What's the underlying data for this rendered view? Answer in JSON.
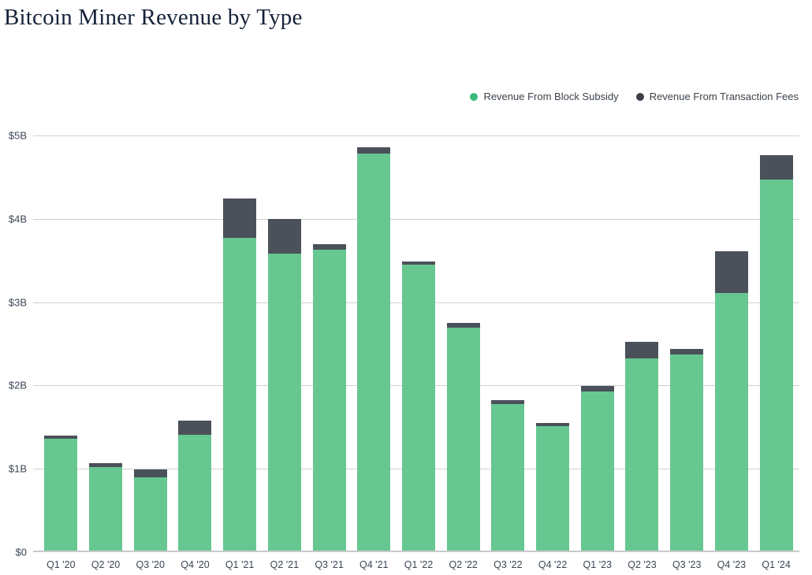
{
  "title": "Bitcoin Miner Revenue by Type",
  "colors": {
    "subsidy_bar": "#67C791",
    "fees_bar": "#4B515A",
    "legend_subsidy_dot": "#3ABA7B",
    "legend_fees_dot": "#3A4047",
    "gridline": "#D1D1D1",
    "baseline": "#C8CACC",
    "axis_text": "#3C4653",
    "title_text": "#15223A"
  },
  "legend": [
    {
      "name": "legend-item-block-subsidy",
      "label": "Revenue From Block Subsidy",
      "dot_color": "#3ABA7B"
    },
    {
      "name": "legend-item-transaction-fees",
      "label": "Revenue From Transaction Fees",
      "dot_color": "#3A4047"
    }
  ],
  "chart_data": {
    "type": "bar",
    "stacked": true,
    "title": "Bitcoin Miner Revenue by Type",
    "xlabel": "",
    "ylabel": "",
    "ylim": [
      0,
      5
    ],
    "grid": "horizontal",
    "legend_position": "top-right",
    "categories": [
      "Q1 '20",
      "Q2 '20",
      "Q3 '20",
      "Q4 '20",
      "Q1 '21",
      "Q2 '21",
      "Q3 '21",
      "Q4 '21",
      "Q1 '22",
      "Q2 '22",
      "Q3 '22",
      "Q4 '22",
      "Q1 '23",
      "Q2 '23",
      "Q3 '23",
      "Q4 '23",
      "Q1 '24"
    ],
    "y_ticks": [
      {
        "value": 5,
        "label": "$5B"
      },
      {
        "value": 4,
        "label": "$4B"
      },
      {
        "value": 3,
        "label": "$3B"
      },
      {
        "value": 2,
        "label": "$2B"
      },
      {
        "value": 1,
        "label": "$1B"
      },
      {
        "value": 0,
        "label": "$0"
      }
    ],
    "unit": "billions USD",
    "series": [
      {
        "name": "Revenue From Block Subsidy",
        "color": "#67C791",
        "values": [
          1.36,
          1.02,
          0.9,
          1.41,
          3.77,
          3.58,
          3.63,
          4.78,
          3.45,
          2.69,
          1.78,
          1.51,
          1.93,
          2.33,
          2.37,
          3.11,
          4.47
        ]
      },
      {
        "name": "Revenue From Transaction Fees",
        "color": "#4B515A",
        "values": [
          0.04,
          0.05,
          0.09,
          0.17,
          0.47,
          0.42,
          0.07,
          0.08,
          0.04,
          0.06,
          0.04,
          0.04,
          0.06,
          0.19,
          0.07,
          0.5,
          0.29
        ]
      }
    ]
  }
}
